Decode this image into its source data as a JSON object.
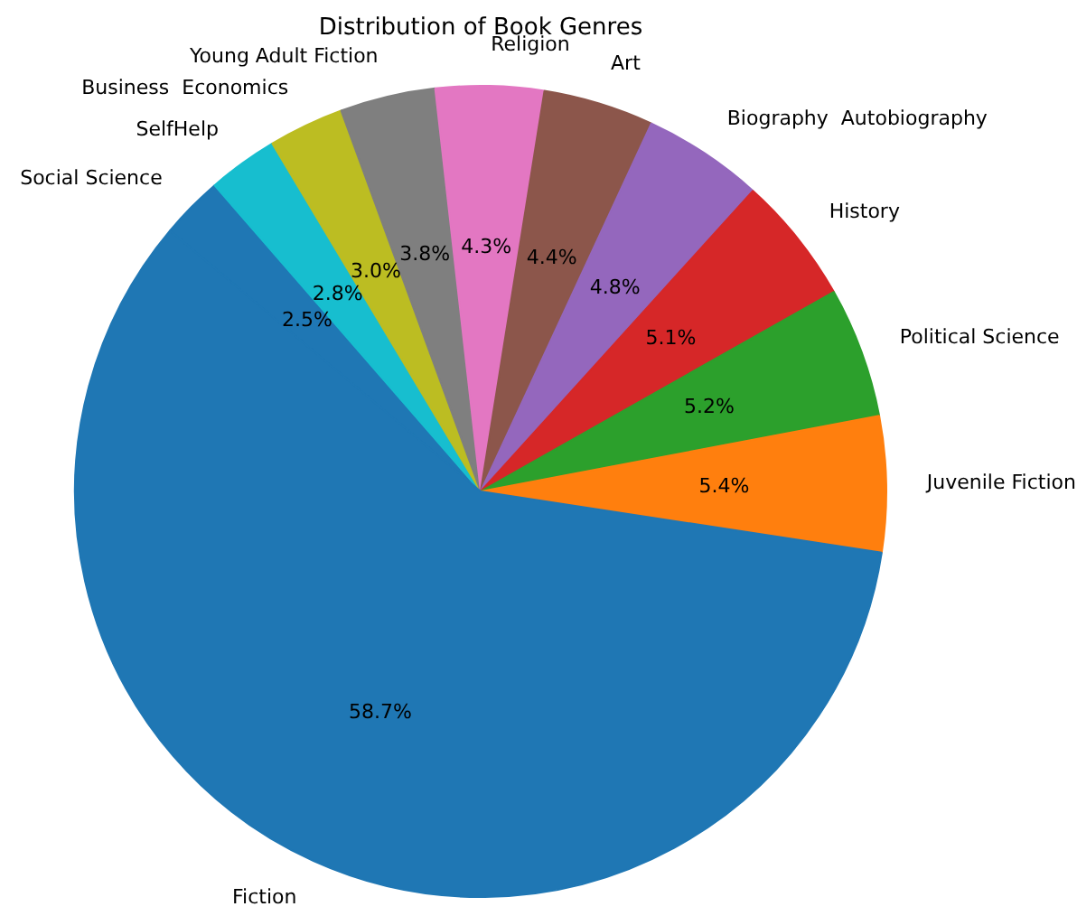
{
  "chart_data": {
    "type": "pie",
    "title": "Distribution of Book Genres",
    "categories": [
      "Social Science",
      "SelfHelp",
      "Business  Economics",
      "Young Adult Fiction",
      "Religion",
      "Art",
      "Biography  Autobiography",
      "History",
      "Political Science",
      "Juvenile Fiction",
      "Fiction"
    ],
    "values": [
      2.5,
      2.8,
      3.0,
      3.8,
      4.3,
      4.4,
      4.8,
      5.1,
      5.2,
      5.4,
      58.7
    ],
    "value_labels": [
      "2.5%",
      "2.8%",
      "3.0%",
      "3.8%",
      "4.3%",
      "4.4%",
      "4.8%",
      "5.1%",
      "5.2%",
      "5.4%",
      "58.7%"
    ],
    "colors": [
      "#1f77b4",
      "#17becf",
      "#bcbd22",
      "#7f7f7f",
      "#e377c2",
      "#8c564b",
      "#9467bd",
      "#d62728",
      "#2ca02c",
      "#ff7f0e",
      "#1f77b4"
    ],
    "legend": false
  }
}
